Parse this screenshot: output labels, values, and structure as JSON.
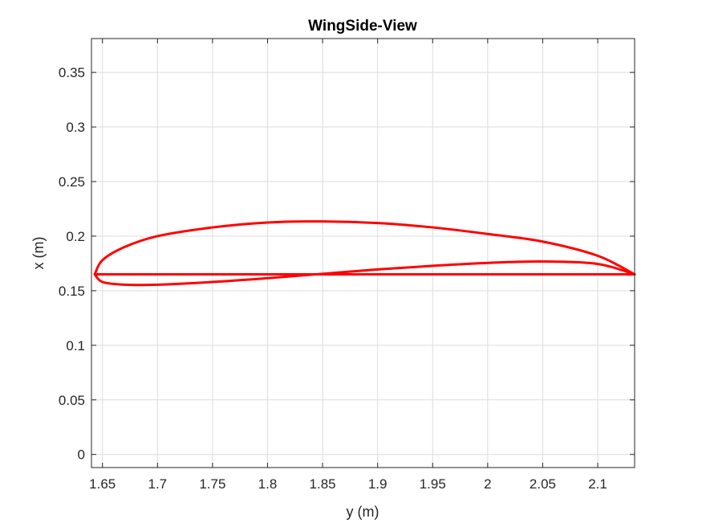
{
  "chart_data": {
    "type": "line",
    "title": "WingSide-View",
    "xlabel": "y (m)",
    "ylabel": "x (m)",
    "xlim": [
      1.64,
      2.1335
    ],
    "ylim": [
      -0.012,
      0.381
    ],
    "xticks": [
      1.65,
      1.7,
      1.75,
      1.8,
      1.85,
      1.9,
      1.95,
      2,
      2.05,
      2.1
    ],
    "xtick_labels": [
      "1.65",
      "1.7",
      "1.75",
      "1.8",
      "1.85",
      "1.9",
      "1.95",
      "2",
      "2.05",
      "2.1"
    ],
    "yticks": [
      0,
      0.05,
      0.1,
      0.15,
      0.2,
      0.25,
      0.3,
      0.35
    ],
    "ytick_labels": [
      "0",
      "0.05",
      "0.1",
      "0.15",
      "0.2",
      "0.25",
      "0.3",
      "0.35"
    ],
    "grid": true,
    "line_color": "#ff0000",
    "series": [
      {
        "id": "upper-surface",
        "x": [
          2.1335,
          2.1,
          2.05,
          2.0,
          1.95,
          1.9,
          1.85,
          1.8,
          1.75,
          1.7,
          1.67,
          1.65,
          1.643
        ],
        "y": [
          0.165,
          0.182,
          0.195,
          0.202,
          0.208,
          0.212,
          0.2135,
          0.2125,
          0.208,
          0.2,
          0.19,
          0.178,
          0.165
        ]
      },
      {
        "id": "lower-surface",
        "x": [
          1.643,
          1.65,
          1.67,
          1.7,
          1.75,
          1.8,
          1.85,
          1.9,
          1.95,
          2.0,
          2.05,
          2.1,
          2.1335
        ],
        "y": [
          0.165,
          0.158,
          0.1555,
          0.1555,
          0.158,
          0.1615,
          0.1655,
          0.1695,
          0.1728,
          0.1755,
          0.1768,
          0.1745,
          0.165
        ]
      },
      {
        "id": "chord-line",
        "x": [
          1.643,
          2.1335
        ],
        "y": [
          0.165,
          0.165
        ]
      }
    ]
  }
}
